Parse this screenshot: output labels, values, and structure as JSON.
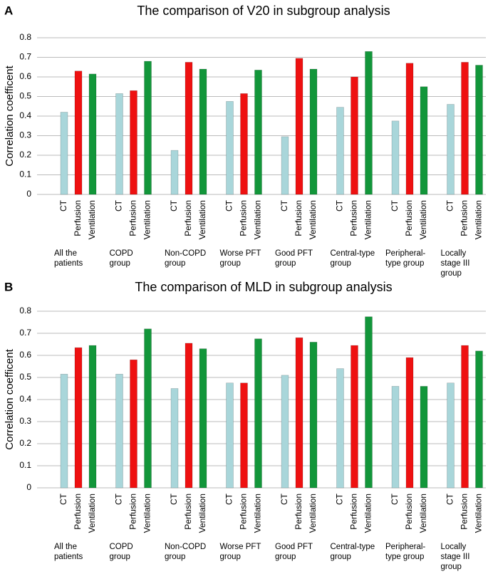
{
  "chart_data": [
    {
      "type": "bar",
      "panel": "A",
      "title": "The comparison of V20 in subgroup analysis",
      "ylabel": "Correlation coefficent",
      "categories": [
        "All the\npatients",
        "COPD\ngroup",
        "Non-COPD\ngroup",
        "Worse PFT\ngroup",
        "Good PFT\ngroup",
        "Central-type\ngroup",
        "Peripheral-\ntype group",
        "Locally\nstage III\ngroup"
      ],
      "series": [
        {
          "name": "CT",
          "color": "#a9d6da",
          "values": [
            0.42,
            0.515,
            0.225,
            0.475,
            0.295,
            0.445,
            0.375,
            0.46
          ]
        },
        {
          "name": "Perfusion",
          "color": "#ee1111",
          "values": [
            0.63,
            0.53,
            0.675,
            0.515,
            0.695,
            0.6,
            0.67,
            0.675
          ]
        },
        {
          "name": "Ventilation",
          "color": "#12963a",
          "values": [
            0.615,
            0.68,
            0.64,
            0.635,
            0.64,
            0.73,
            0.55,
            0.66
          ]
        }
      ],
      "ylim": [
        0,
        0.8
      ],
      "yticks": [
        0,
        0.1,
        0.2,
        0.3,
        0.4,
        0.5,
        0.6,
        0.7,
        0.8
      ],
      "grid": true
    },
    {
      "type": "bar",
      "panel": "B",
      "title": "The comparison of MLD in subgroup analysis",
      "ylabel": "Correlation coefficent",
      "categories": [
        "All the\npatients",
        "COPD\ngroup",
        "Non-COPD\ngroup",
        "Worse PFT\ngroup",
        "Good PFT\ngroup",
        "Central-type\ngroup",
        "Peripheral-\ntype group",
        "Locally\nstage III\ngroup"
      ],
      "series": [
        {
          "name": "CT",
          "color": "#a9d6da",
          "values": [
            0.515,
            0.515,
            0.45,
            0.475,
            0.51,
            0.54,
            0.46,
            0.475
          ]
        },
        {
          "name": "Perfusion",
          "color": "#ee1111",
          "values": [
            0.635,
            0.58,
            0.655,
            0.475,
            0.68,
            0.645,
            0.59,
            0.645
          ]
        },
        {
          "name": "Ventilation",
          "color": "#12963a",
          "values": [
            0.645,
            0.72,
            0.63,
            0.675,
            0.66,
            0.775,
            0.46,
            0.62
          ]
        }
      ],
      "ylim": [
        0,
        0.8
      ],
      "yticks": [
        0,
        0.1,
        0.2,
        0.3,
        0.4,
        0.5,
        0.6,
        0.7,
        0.8
      ],
      "grid": true
    }
  ]
}
